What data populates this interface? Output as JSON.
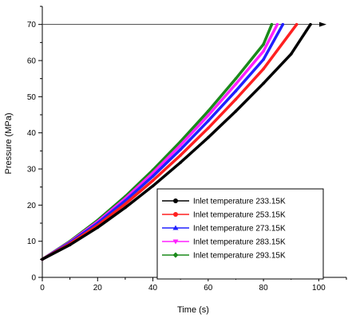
{
  "chart_data": {
    "type": "line",
    "title": "",
    "xlabel": "Time (s)",
    "ylabel": "Pressure (MPa)",
    "xlim": [
      0,
      110
    ],
    "ylim": [
      0,
      75
    ],
    "xticks": [
      0,
      20,
      40,
      60,
      80,
      100
    ],
    "yticks": [
      0,
      10,
      20,
      30,
      40,
      50,
      60,
      70
    ],
    "legend_position": "bottom-right",
    "reference_line": {
      "y": 70,
      "arrow": true
    },
    "series": [
      {
        "name": "Inlet temperature 233.15K",
        "color": "#000000",
        "marker": "circle",
        "x": [
          0,
          10,
          20,
          30,
          40,
          50,
          60,
          70,
          80,
          90,
          97
        ],
        "y": [
          5,
          9,
          13.8,
          19.3,
          25.3,
          31.8,
          38.7,
          46,
          53.7,
          61.8,
          70
        ]
      },
      {
        "name": "Inlet temperature 253.15K",
        "color": "#ff2020",
        "marker": "circle",
        "x": [
          0,
          10,
          20,
          30,
          40,
          50,
          60,
          70,
          80,
          92
        ],
        "y": [
          5,
          9.3,
          14.4,
          20.3,
          26.8,
          33.8,
          41.3,
          49.3,
          57.7,
          70
        ]
      },
      {
        "name": "Inlet temperature 273.15K",
        "color": "#2020ff",
        "marker": "triangle-up",
        "x": [
          0,
          10,
          20,
          30,
          40,
          50,
          60,
          70,
          80,
          87
        ],
        "y": [
          5,
          9.6,
          15,
          21.2,
          28,
          35.4,
          43.3,
          51.6,
          60.3,
          70
        ]
      },
      {
        "name": "Inlet temperature 283.15K",
        "color": "#ff20ff",
        "marker": "triangle-down",
        "x": [
          0,
          10,
          20,
          30,
          40,
          50,
          60,
          70,
          80,
          85
        ],
        "y": [
          5,
          9.8,
          15.4,
          21.8,
          28.9,
          36.6,
          44.8,
          53.5,
          62.6,
          70
        ]
      },
      {
        "name": "Inlet temperature 293.15K",
        "color": "#1a8a1a",
        "marker": "diamond",
        "x": [
          0,
          10,
          20,
          30,
          40,
          50,
          60,
          70,
          80,
          83
        ],
        "y": [
          5,
          10,
          15.8,
          22.4,
          29.7,
          37.6,
          46,
          55,
          64.5,
          70
        ]
      }
    ]
  }
}
